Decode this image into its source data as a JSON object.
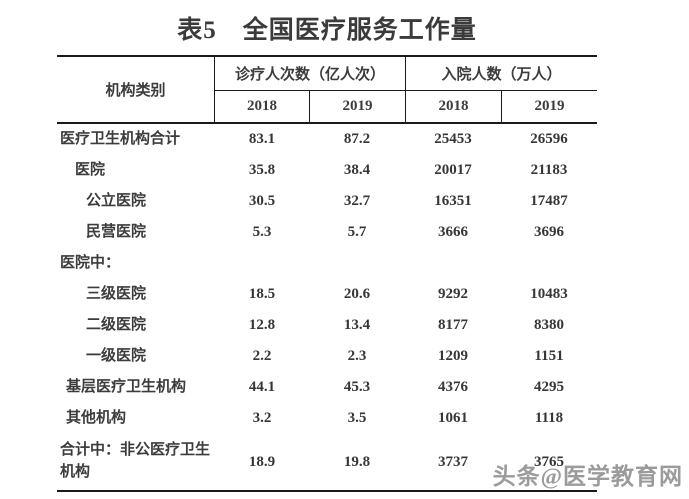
{
  "title": "表5　全国医疗服务工作量",
  "table": {
    "category_header": "机构类别",
    "groups": [
      {
        "label": "诊疗人次数（亿人次）",
        "years": [
          "2018",
          "2019"
        ]
      },
      {
        "label": "入院人数（万人）",
        "years": [
          "2018",
          "2019"
        ]
      }
    ],
    "rows": [
      {
        "label": "医疗卫生机构合计",
        "indent": 0,
        "values": [
          "83.1",
          "87.2",
          "25453",
          "26596"
        ]
      },
      {
        "label": "医院",
        "indent": 1,
        "values": [
          "35.8",
          "38.4",
          "20017",
          "21183"
        ]
      },
      {
        "label": "公立医院",
        "indent": 2,
        "values": [
          "30.5",
          "32.7",
          "16351",
          "17487"
        ]
      },
      {
        "label": "民营医院",
        "indent": 2,
        "values": [
          "5.3",
          "5.7",
          "3666",
          "3696"
        ]
      },
      {
        "label": "医院中：",
        "indent": 0,
        "values": [
          "",
          "",
          "",
          ""
        ]
      },
      {
        "label": "三级医院",
        "indent": 2,
        "values": [
          "18.5",
          "20.6",
          "9292",
          "10483"
        ]
      },
      {
        "label": "二级医院",
        "indent": 2,
        "values": [
          "12.8",
          "13.4",
          "8177",
          "8380"
        ]
      },
      {
        "label": "一级医院",
        "indent": 2,
        "values": [
          "2.2",
          "2.3",
          "1209",
          "1151"
        ]
      },
      {
        "label": "基层医疗卫生机构",
        "indent": 1,
        "values": [
          "44.1",
          "45.3",
          "4376",
          "4295"
        ]
      },
      {
        "label": "其他机构",
        "indent": 1,
        "values": [
          "3.2",
          "3.5",
          "1061",
          "1118"
        ]
      },
      {
        "label": "合计中：非公医疗卫生机构",
        "indent": 0,
        "values": [
          "18.9",
          "19.8",
          "3737",
          "3765"
        ]
      }
    ]
  },
  "watermark": "头条@医学教育网",
  "colors": {
    "text": "#3c3c3c",
    "border": "#1a1a1a",
    "watermark": "#9b9b9b",
    "background": "#ffffff"
  },
  "chart_data": {
    "type": "table",
    "title": "表5 全国医疗服务工作量",
    "columns": [
      "机构类别",
      "诊疗人次数（亿人次）2018",
      "诊疗人次数（亿人次）2019",
      "入院人数（万人）2018",
      "入院人数（万人）2019"
    ],
    "rows": [
      [
        "医疗卫生机构合计",
        83.1,
        87.2,
        25453,
        26596
      ],
      [
        "医院",
        35.8,
        38.4,
        20017,
        21183
      ],
      [
        "公立医院",
        30.5,
        32.7,
        16351,
        17487
      ],
      [
        "民营医院",
        5.3,
        5.7,
        3666,
        3696
      ],
      [
        "医院中：",
        null,
        null,
        null,
        null
      ],
      [
        "三级医院",
        18.5,
        20.6,
        9292,
        10483
      ],
      [
        "二级医院",
        12.8,
        13.4,
        8177,
        8380
      ],
      [
        "一级医院",
        2.2,
        2.3,
        1209,
        1151
      ],
      [
        "基层医疗卫生机构",
        44.1,
        45.3,
        4376,
        4295
      ],
      [
        "其他机构",
        3.2,
        3.5,
        1061,
        1118
      ],
      [
        "合计中：非公医疗卫生机构",
        18.9,
        19.8,
        3737,
        3765
      ]
    ]
  }
}
